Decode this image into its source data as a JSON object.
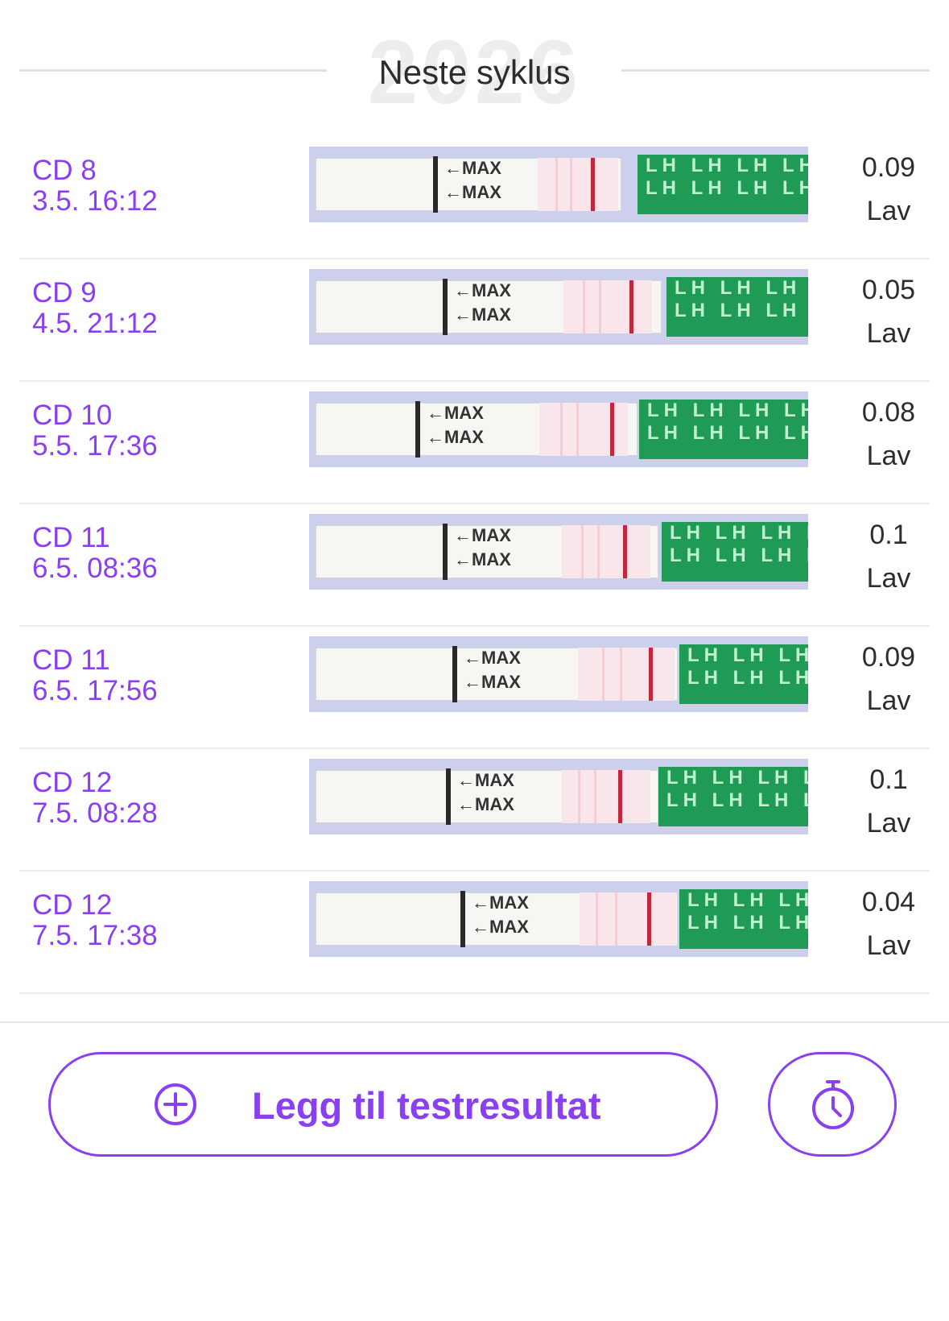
{
  "header": {
    "watermark_year": "2026",
    "title": "Neste syklus"
  },
  "entries": [
    {
      "cd": "CD 8",
      "datetime": "3.5. 16:12",
      "value": "0.09",
      "level": "Lav"
    },
    {
      "cd": "CD 9",
      "datetime": "4.5. 21:12",
      "value": "0.05",
      "level": "Lav"
    },
    {
      "cd": "CD 10",
      "datetime": "5.5. 17:36",
      "value": "0.08",
      "level": "Lav"
    },
    {
      "cd": "CD 11",
      "datetime": "6.5. 08:36",
      "value": "0.1",
      "level": "Lav"
    },
    {
      "cd": "CD 11",
      "datetime": "6.5. 17:56",
      "value": "0.09",
      "level": "Lav"
    },
    {
      "cd": "CD 12",
      "datetime": "7.5. 08:28",
      "value": "0.1",
      "level": "Lav"
    },
    {
      "cd": "CD 12",
      "datetime": "7.5. 17:38",
      "value": "0.04",
      "level": "Lav"
    }
  ],
  "strip": {
    "max_label": "←MAX",
    "lh_label": "LH"
  },
  "actions": {
    "add_label": "Legg til testresultat",
    "add_icon": "plus-circle-icon",
    "timer_icon": "stopwatch-icon"
  },
  "colors": {
    "accent": "#8a3ff0",
    "text": "#2d2d2d",
    "strip_green": "#1f9b56",
    "test_line": "#c0283e"
  }
}
